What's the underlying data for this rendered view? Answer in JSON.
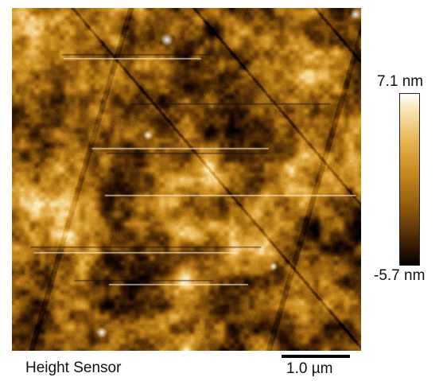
{
  "caption": "Height Sensor",
  "scale_bar": {
    "label": "1.0 µm"
  },
  "color_scale": {
    "max_label": "7.1 nm",
    "min_label": "-5.7 nm",
    "colors": [
      "#ffffff",
      "#f7e3ad",
      "#e6b351",
      "#c78a1e",
      "#97600d",
      "#5c3406",
      "#2a1202",
      "#000000"
    ]
  }
}
